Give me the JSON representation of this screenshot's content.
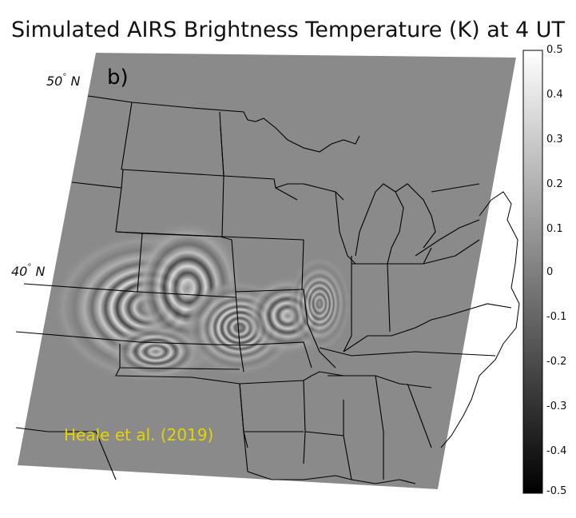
{
  "title": "Simulated AIRS Brightness Temperature (K) at 4 UT",
  "panel_label": "b)",
  "credit": "Heale et al. (2019)",
  "latitudes": [
    {
      "value": "50",
      "unit": "N"
    },
    {
      "value": "40",
      "unit": "N"
    }
  ],
  "colorbar": {
    "ticks": [
      "0.5",
      "0.4",
      "0.3",
      "0.2",
      "0.1",
      "0",
      "-0.1",
      "-0.2",
      "-0.3",
      "-0.4",
      "-0.5"
    ],
    "colormap": "grayscale",
    "color_max": "#ffffff",
    "color_min": "#000000"
  },
  "colors": {
    "background_field": "#8a8a8a",
    "credit_text": "#e6d400",
    "borders": "#000000"
  }
}
